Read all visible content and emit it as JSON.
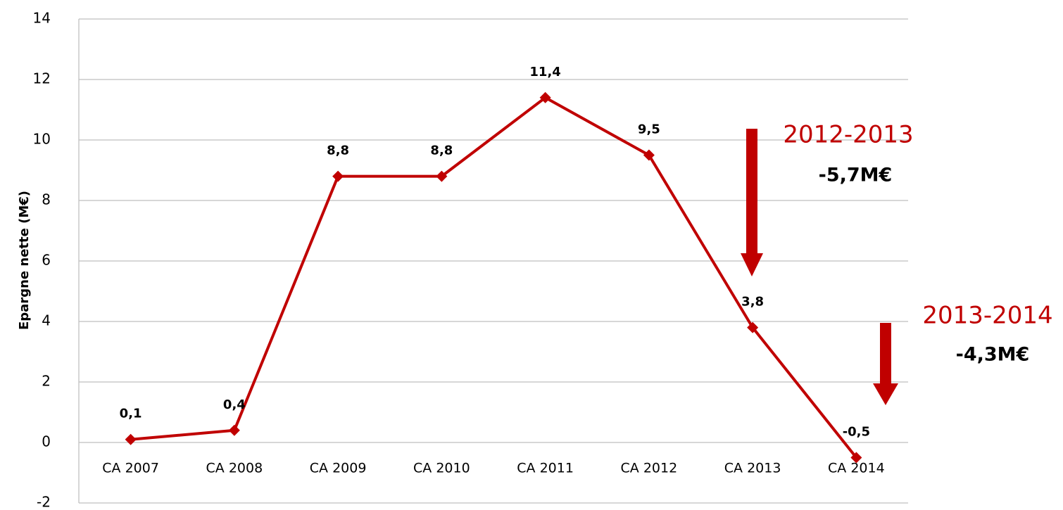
{
  "chart_data": {
    "type": "line",
    "y_label": "Epargne nette (M€)",
    "categories": [
      "CA 2007",
      "CA 2008",
      "CA 2009",
      "CA 2010",
      "CA 2011",
      "CA 2012",
      "CA 2013",
      "CA 2014"
    ],
    "values": [
      0.1,
      0.4,
      8.8,
      8.8,
      11.4,
      9.5,
      3.8,
      -0.5
    ],
    "value_labels": [
      "0,1",
      "0,4",
      "8,8",
      "8,8",
      "11,4",
      "9,5",
      "3,8",
      "-0,5"
    ],
    "color": "#c00000",
    "ylim": [
      -2,
      14
    ],
    "yticks": [
      -2,
      0,
      2,
      4,
      6,
      8,
      10,
      12,
      14
    ],
    "grid": true,
    "annotations": [
      "2012-2013",
      "-5,7M€",
      "2013-2014",
      "-4,3M€"
    ]
  }
}
